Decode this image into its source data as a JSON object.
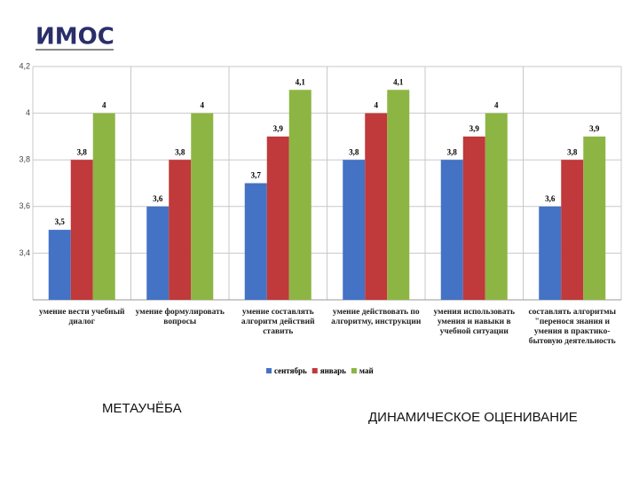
{
  "logo": {
    "text": "ИМОС"
  },
  "chart_data": {
    "type": "bar",
    "categories": [
      "умение вести учебный диалог",
      "умение формулировать вопросы",
      "умение составлять алгоритм действий ставить",
      "умение действовать по алгоритму, инструкции",
      "умения использовать умения и навыки в учебной ситуации",
      "составлять алгоритмы \"перенося знания и умения в практико-бытовую деятельность"
    ],
    "series": [
      {
        "name": "сентябрь",
        "color": "#4472c4",
        "values": [
          3.5,
          3.6,
          3.7,
          3.8,
          3.8,
          3.6
        ],
        "value_labels": [
          "3,5",
          "3,6",
          "3,7",
          "3,8",
          "3,8",
          "3,6"
        ]
      },
      {
        "name": "январь",
        "color": "#c0393b",
        "values": [
          3.8,
          3.8,
          3.9,
          4,
          3.9,
          3.8
        ],
        "value_labels": [
          "3,8",
          "3,8",
          "3,9",
          "4",
          "3,9",
          "3,8"
        ]
      },
      {
        "name": "май",
        "color": "#8db543",
        "values": [
          4,
          4,
          4.1,
          4.1,
          4,
          3.9
        ],
        "value_labels": [
          "4",
          "4",
          "4,1",
          "4,1",
          "4",
          "3,9"
        ]
      }
    ],
    "ylim": [
      3.2,
      4.2
    ],
    "yticks": [
      {
        "value": 3.4,
        "label": "3,4"
      },
      {
        "value": 3.6,
        "label": "3,6"
      },
      {
        "value": 3.8,
        "label": "3,8"
      },
      4,
      {
        "value": 4.2,
        "label": "4,2"
      }
    ],
    "grid": true,
    "legend": "bottom"
  },
  "captions": [
    "МЕТАУЧЁБА",
    "ДИНАМИЧЕСКОЕ ОЦЕНИВАНИЕ"
  ]
}
